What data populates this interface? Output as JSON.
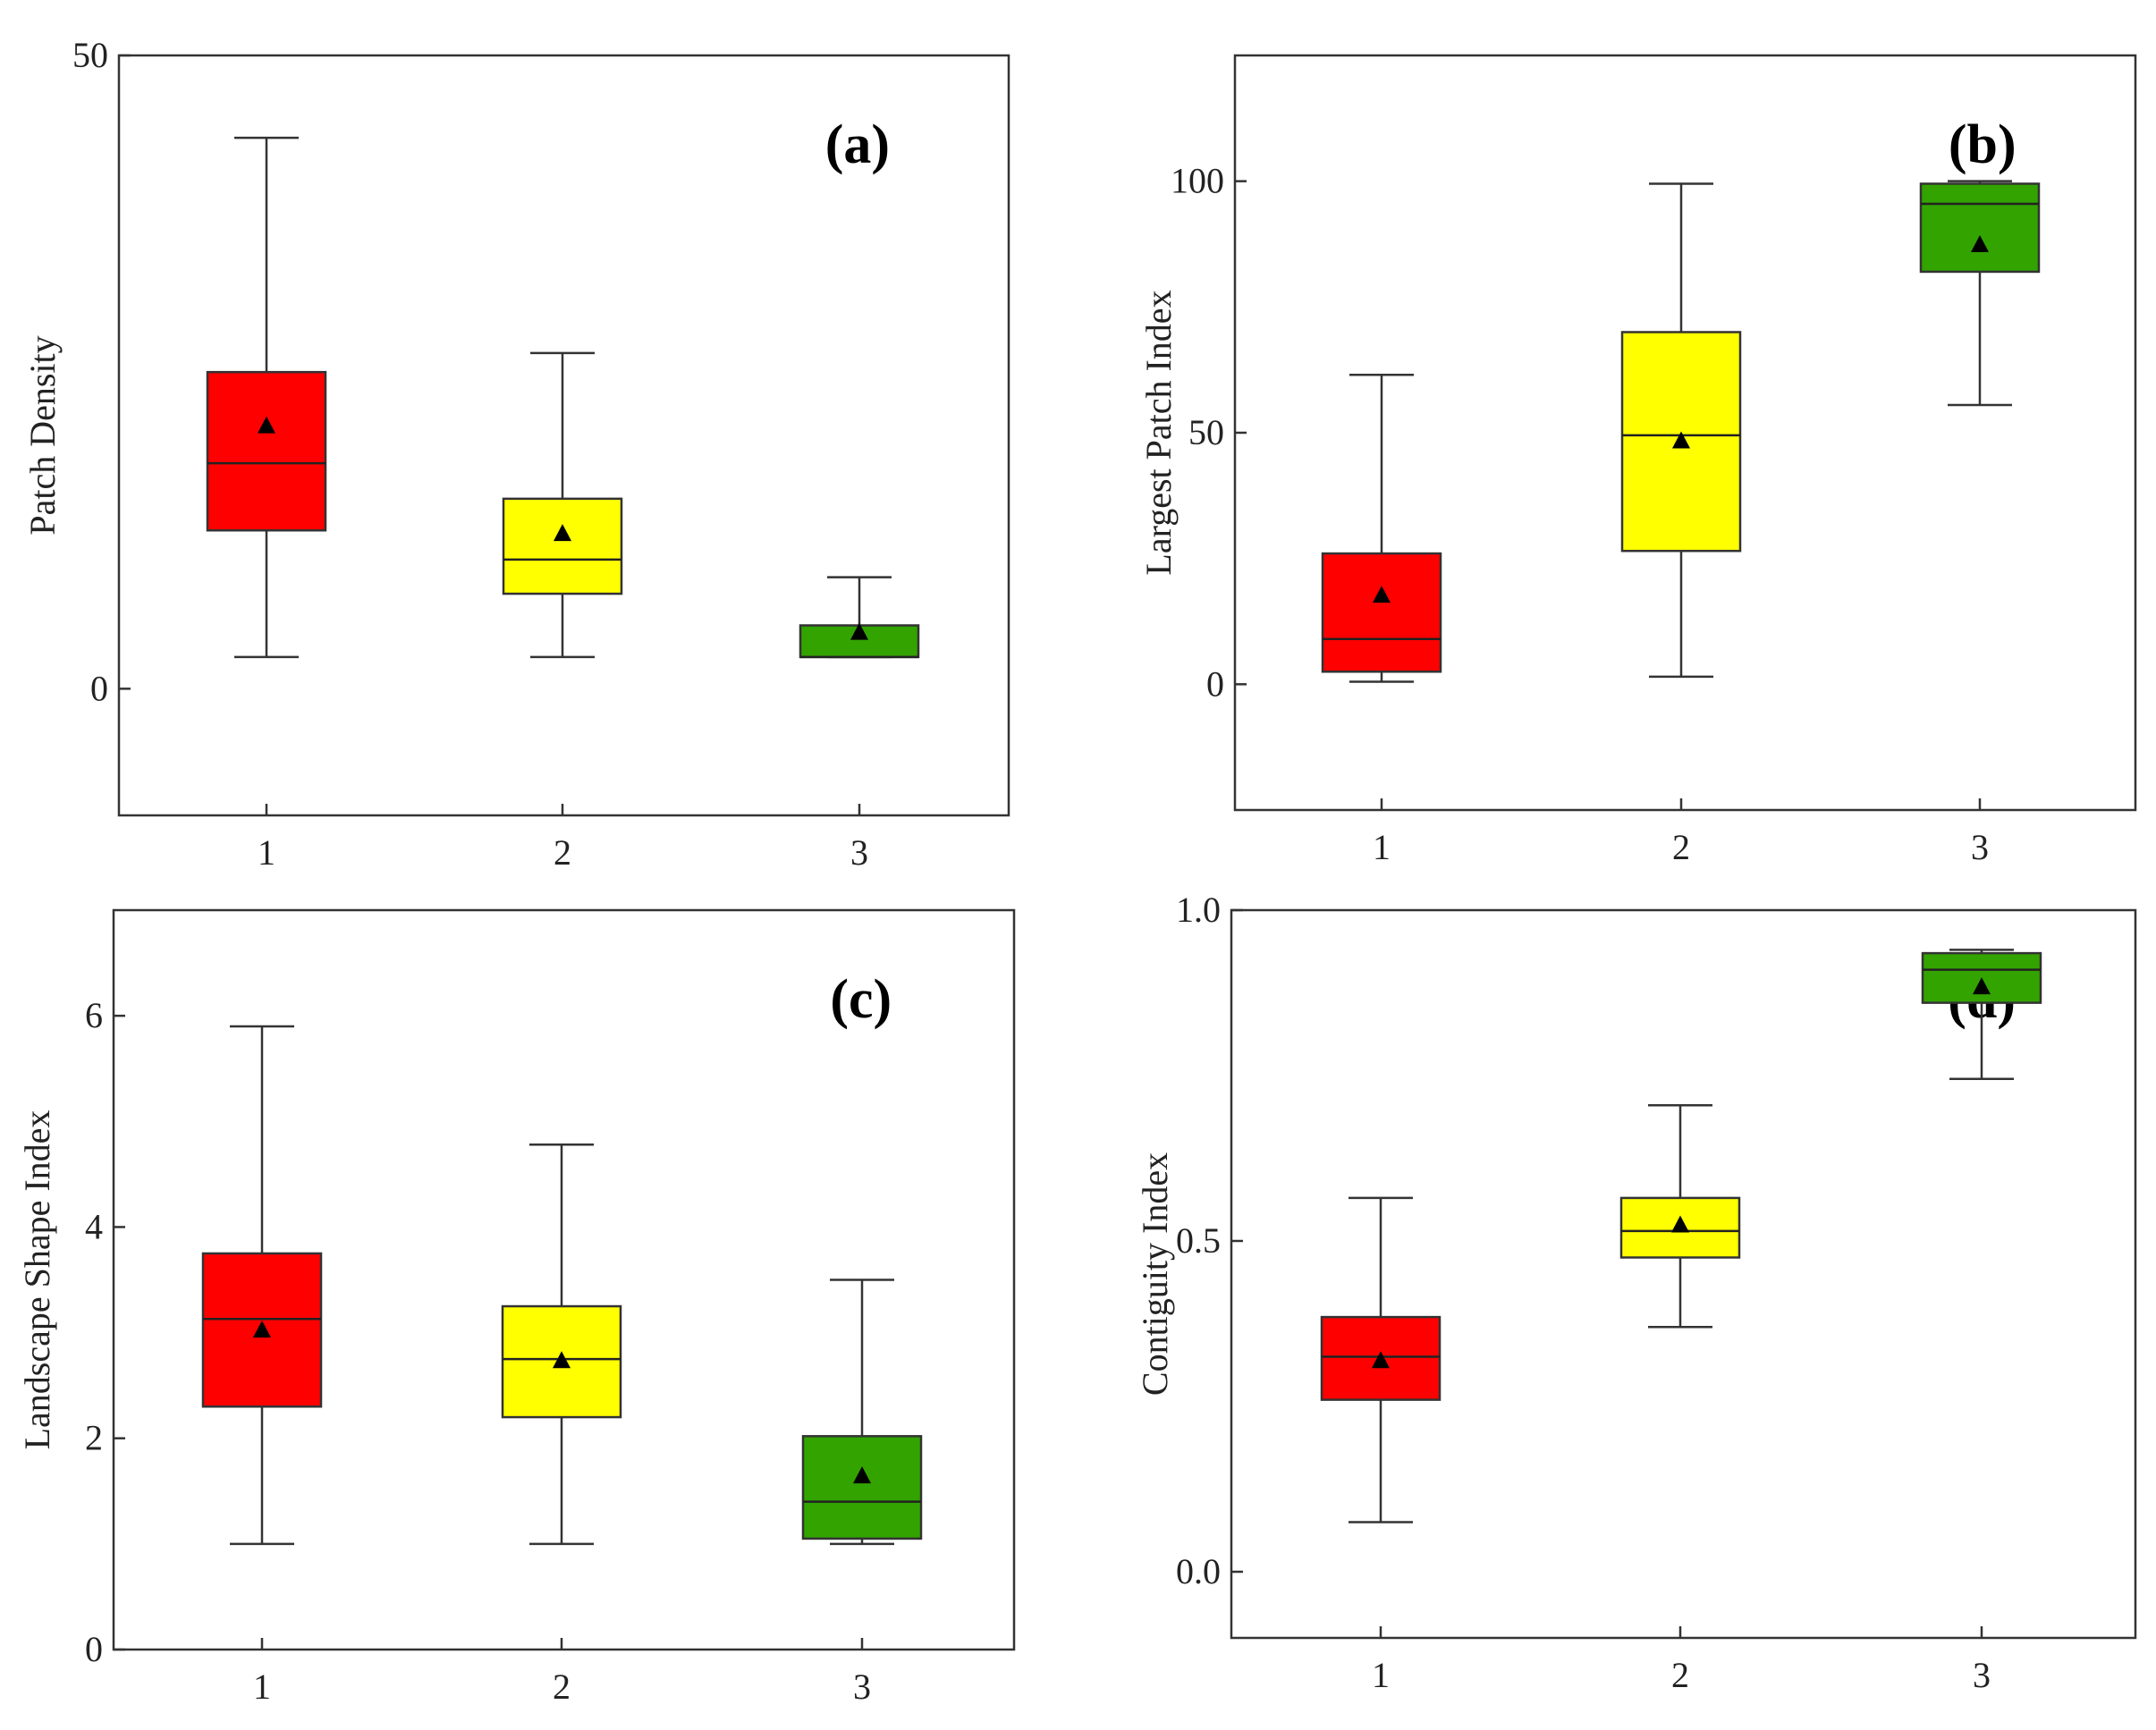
{
  "colors": {
    "class_1": "#ff0000",
    "class_2": "#ffff00",
    "class_3": "#33a300",
    "axis": "#333333",
    "mean_marker": "#000000"
  },
  "chart_data": [
    {
      "type": "box",
      "panel_label": "(a)",
      "ylabel": "Patch Density",
      "ylim": [
        -10,
        50
      ],
      "yticks": [
        0,
        50
      ],
      "ytick_labels": [
        "0",
        "50"
      ],
      "categories": [
        "1",
        "2",
        "3"
      ],
      "boxes": [
        {
          "category": "1",
          "min": 2.5,
          "q1": 12.5,
          "median": 17.8,
          "q3": 25.0,
          "max": 43.5,
          "mean": 20.8
        },
        {
          "category": "2",
          "min": 2.5,
          "q1": 7.5,
          "median": 10.2,
          "q3": 15.0,
          "max": 26.5,
          "mean": 12.3
        },
        {
          "category": "3",
          "min": 2.5,
          "q1": 2.5,
          "median": 2.5,
          "q3": 5.0,
          "max": 8.8,
          "mean": 4.5
        }
      ]
    },
    {
      "type": "box",
      "panel_label": "(b)",
      "ylabel": "Largest Patch Index",
      "ylim": [
        -25,
        125
      ],
      "yticks": [
        0,
        50,
        100
      ],
      "ytick_labels": [
        "0",
        "50",
        "100"
      ],
      "categories": [
        "1",
        "2",
        "3"
      ],
      "boxes": [
        {
          "category": "1",
          "min": 0.5,
          "q1": 2.5,
          "median": 9.0,
          "q3": 26.0,
          "max": 61.5,
          "mean": 17.8
        },
        {
          "category": "2",
          "min": 1.5,
          "q1": 26.5,
          "median": 49.5,
          "q3": 70.0,
          "max": 99.5,
          "mean": 48.5
        },
        {
          "category": "3",
          "min": 55.5,
          "q1": 82.0,
          "median": 95.5,
          "q3": 99.5,
          "max": 100.0,
          "mean": 87.5
        }
      ]
    },
    {
      "type": "box",
      "panel_label": "(c)",
      "ylabel": "Landscape Shape Index",
      "ylim": [
        0,
        7
      ],
      "yticks": [
        0,
        2,
        4,
        6
      ],
      "ytick_labels": [
        "0",
        "2",
        "4",
        "6"
      ],
      "categories": [
        "1",
        "2",
        "3"
      ],
      "boxes": [
        {
          "category": "1",
          "min": 1.0,
          "q1": 2.3,
          "median": 3.13,
          "q3": 3.75,
          "max": 5.9,
          "mean": 3.03
        },
        {
          "category": "2",
          "min": 1.0,
          "q1": 2.2,
          "median": 2.75,
          "q3": 3.25,
          "max": 4.78,
          "mean": 2.74
        },
        {
          "category": "3",
          "min": 1.0,
          "q1": 1.05,
          "median": 1.4,
          "q3": 2.02,
          "max": 3.5,
          "mean": 1.65
        }
      ]
    },
    {
      "type": "box",
      "panel_label": "(d)",
      "ylabel": "Contiguity Index",
      "ylim": [
        -0.1,
        1.0
      ],
      "yticks": [
        0.0,
        0.5,
        1.0
      ],
      "ytick_labels": [
        "0.0",
        "0.5",
        "1.0"
      ],
      "categories": [
        "1",
        "2",
        "3"
      ],
      "boxes": [
        {
          "category": "1",
          "min": 0.075,
          "q1": 0.26,
          "median": 0.325,
          "q3": 0.385,
          "max": 0.565,
          "mean": 0.32
        },
        {
          "category": "2",
          "min": 0.37,
          "q1": 0.475,
          "median": 0.515,
          "q3": 0.565,
          "max": 0.705,
          "mean": 0.525
        },
        {
          "category": "3",
          "min": 0.745,
          "q1": 0.86,
          "median": 0.91,
          "q3": 0.935,
          "max": 0.94,
          "mean": 0.885
        }
      ]
    }
  ]
}
